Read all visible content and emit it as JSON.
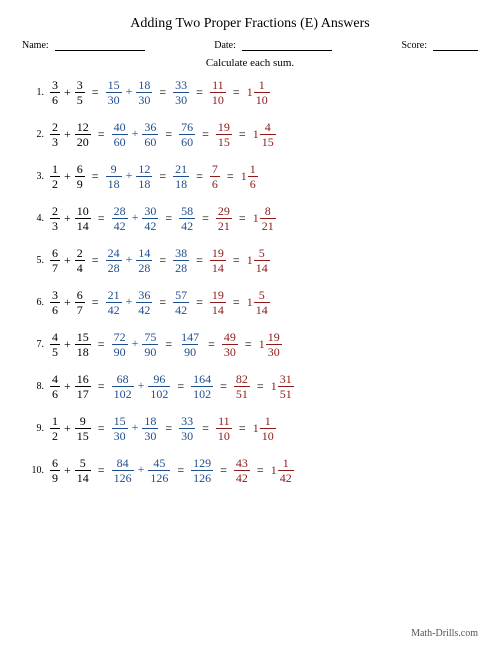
{
  "title": "Adding Two Proper Fractions (E) Answers",
  "header": {
    "name": "Name:",
    "date": "Date:",
    "score": "Score:"
  },
  "instruction": "Calculate each sum.",
  "footer": "Math-Drills.com",
  "colors": {
    "work": "#1f4e8c",
    "reduced": "#8b1a1a",
    "text": "#000000",
    "bg": "#ffffff"
  },
  "problems": [
    {
      "n": "1.",
      "a": {
        "n": 3,
        "d": 6
      },
      "b": {
        "n": 3,
        "d": 5
      },
      "c": {
        "n": 15,
        "d": 30
      },
      "e": {
        "n": 18,
        "d": 30
      },
      "s": {
        "n": 33,
        "d": 30
      },
      "r": {
        "n": 11,
        "d": 10
      },
      "m": {
        "w": 1,
        "n": 1,
        "d": 10
      }
    },
    {
      "n": "2.",
      "a": {
        "n": 2,
        "d": 3
      },
      "b": {
        "n": 12,
        "d": 20
      },
      "c": {
        "n": 40,
        "d": 60
      },
      "e": {
        "n": 36,
        "d": 60
      },
      "s": {
        "n": 76,
        "d": 60
      },
      "r": {
        "n": 19,
        "d": 15
      },
      "m": {
        "w": 1,
        "n": 4,
        "d": 15
      }
    },
    {
      "n": "3.",
      "a": {
        "n": 1,
        "d": 2
      },
      "b": {
        "n": 6,
        "d": 9
      },
      "c": {
        "n": 9,
        "d": 18
      },
      "e": {
        "n": 12,
        "d": 18
      },
      "s": {
        "n": 21,
        "d": 18
      },
      "r": {
        "n": 7,
        "d": 6
      },
      "m": {
        "w": 1,
        "n": 1,
        "d": 6
      }
    },
    {
      "n": "4.",
      "a": {
        "n": 2,
        "d": 3
      },
      "b": {
        "n": 10,
        "d": 14
      },
      "c": {
        "n": 28,
        "d": 42
      },
      "e": {
        "n": 30,
        "d": 42
      },
      "s": {
        "n": 58,
        "d": 42
      },
      "r": {
        "n": 29,
        "d": 21
      },
      "m": {
        "w": 1,
        "n": 8,
        "d": 21
      }
    },
    {
      "n": "5.",
      "a": {
        "n": 6,
        "d": 7
      },
      "b": {
        "n": 2,
        "d": 4
      },
      "c": {
        "n": 24,
        "d": 28
      },
      "e": {
        "n": 14,
        "d": 28
      },
      "s": {
        "n": 38,
        "d": 28
      },
      "r": {
        "n": 19,
        "d": 14
      },
      "m": {
        "w": 1,
        "n": 5,
        "d": 14
      }
    },
    {
      "n": "6.",
      "a": {
        "n": 3,
        "d": 6
      },
      "b": {
        "n": 6,
        "d": 7
      },
      "c": {
        "n": 21,
        "d": 42
      },
      "e": {
        "n": 36,
        "d": 42
      },
      "s": {
        "n": 57,
        "d": 42
      },
      "r": {
        "n": 19,
        "d": 14
      },
      "m": {
        "w": 1,
        "n": 5,
        "d": 14
      }
    },
    {
      "n": "7.",
      "a": {
        "n": 4,
        "d": 5
      },
      "b": {
        "n": 15,
        "d": 18
      },
      "c": {
        "n": 72,
        "d": 90
      },
      "e": {
        "n": 75,
        "d": 90
      },
      "s": {
        "n": 147,
        "d": 90
      },
      "r": {
        "n": 49,
        "d": 30
      },
      "m": {
        "w": 1,
        "n": 19,
        "d": 30
      }
    },
    {
      "n": "8.",
      "a": {
        "n": 4,
        "d": 6
      },
      "b": {
        "n": 16,
        "d": 17
      },
      "c": {
        "n": 68,
        "d": 102
      },
      "e": {
        "n": 96,
        "d": 102
      },
      "s": {
        "n": 164,
        "d": 102
      },
      "r": {
        "n": 82,
        "d": 51
      },
      "m": {
        "w": 1,
        "n": 31,
        "d": 51
      }
    },
    {
      "n": "9.",
      "a": {
        "n": 1,
        "d": 2
      },
      "b": {
        "n": 9,
        "d": 15
      },
      "c": {
        "n": 15,
        "d": 30
      },
      "e": {
        "n": 18,
        "d": 30
      },
      "s": {
        "n": 33,
        "d": 30
      },
      "r": {
        "n": 11,
        "d": 10
      },
      "m": {
        "w": 1,
        "n": 1,
        "d": 10
      }
    },
    {
      "n": "10.",
      "a": {
        "n": 6,
        "d": 9
      },
      "b": {
        "n": 5,
        "d": 14
      },
      "c": {
        "n": 84,
        "d": 126
      },
      "e": {
        "n": 45,
        "d": 126
      },
      "s": {
        "n": 129,
        "d": 126
      },
      "r": {
        "n": 43,
        "d": 42
      },
      "m": {
        "w": 1,
        "n": 1,
        "d": 42
      }
    }
  ]
}
